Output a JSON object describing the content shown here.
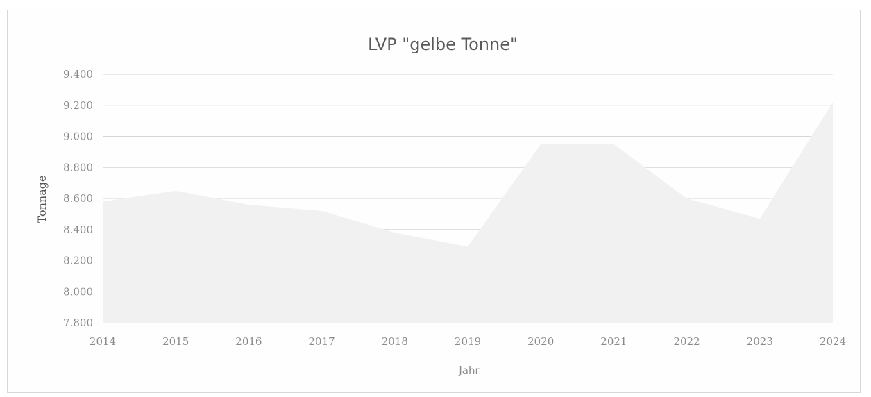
{
  "chart_data": {
    "type": "area",
    "title": "LVP \"gelbe Tonne\"",
    "xlabel": "Jahr",
    "ylabel": "Tonnage",
    "x": [
      "2014",
      "2015",
      "2016",
      "2017",
      "2018",
      "2019",
      "2020",
      "2021",
      "2022",
      "2023",
      "2024"
    ],
    "y_tick_labels": [
      "7.800",
      "8.000",
      "8.200",
      "8.400",
      "8.600",
      "8.800",
      "9.000",
      "9.200",
      "9.400"
    ],
    "y_ticks": [
      7800,
      8000,
      8200,
      8400,
      8600,
      8800,
      9000,
      9200,
      9400
    ],
    "ylim": [
      7800,
      9400
    ],
    "grid": true,
    "legend": "none",
    "series": [
      {
        "values": [
          8580,
          8650,
          8560,
          8520,
          8380,
          8290,
          8950,
          8950,
          8600,
          8470,
          9220
        ]
      }
    ],
    "colors": {
      "area_fill": "#f1f1f1",
      "gridline": "#d6d6d6",
      "text": "#8a8a8a",
      "title": "#5a5a5a"
    }
  }
}
